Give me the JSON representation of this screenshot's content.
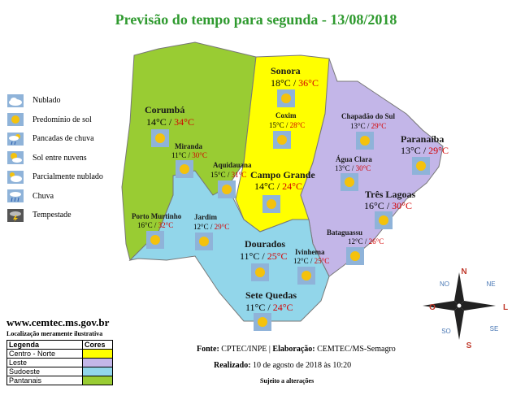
{
  "title": "Previsão do tempo para segunda - 13/08/2018",
  "icon_legend": [
    {
      "label": "Nublado",
      "icon": "cloudy-icon"
    },
    {
      "label": "Predomínio de sol",
      "icon": "sun-icon"
    },
    {
      "label": "Pancadas de chuva",
      "icon": "showers-icon"
    },
    {
      "label": "Sol entre nuvens",
      "icon": "sun-clouds-icon"
    },
    {
      "label": "Parcialmente nublado",
      "icon": "partly-cloudy-icon"
    },
    {
      "label": "Chuva",
      "icon": "rain-icon"
    },
    {
      "label": "Tempestade",
      "icon": "storm-icon"
    }
  ],
  "cities": {
    "corumba": {
      "name": "Corumbá",
      "min": "14°C",
      "sep": " / ",
      "max": "34°C"
    },
    "sonora": {
      "name": "Sonora",
      "min": "18°C",
      "sep": " / ",
      "max": "36°C"
    },
    "coxim": {
      "name": "Coxim",
      "min": "15°C",
      "sep": " / ",
      "max": "28°C"
    },
    "chapadao": {
      "name": "Chapadão do Sul",
      "min": "13°C",
      "sep": " / ",
      "max": "29°C"
    },
    "paranaiba": {
      "name": "Paranaíba",
      "min": "13°C",
      "sep": " / ",
      "max": "29°C"
    },
    "miranda": {
      "name": "Miranda",
      "min": "11°C",
      "sep": " / ",
      "max": "30°C"
    },
    "aquidauana": {
      "name": "Aquidauana",
      "min": "15°C",
      "sep": " / ",
      "max": "31°C"
    },
    "campogrande": {
      "name": "Campo Grande",
      "min": "14°C",
      "sep": " / ",
      "max": "24°C"
    },
    "aguaclara": {
      "name": "Água Clara",
      "min": "13°C",
      "sep": " / ",
      "max": "30°C"
    },
    "treslagoas": {
      "name": "Três Lagoas",
      "min": "16°C",
      "sep": " / ",
      "max": "30°C"
    },
    "portomurtinho": {
      "name": "Porto Murtinho",
      "min": "16°C",
      "sep": " / ",
      "max": "32°C"
    },
    "jardim": {
      "name": "Jardim",
      "min": "12°C",
      "sep": " / ",
      "max": "29°C"
    },
    "bataguassu": {
      "name": "Bataguassu",
      "min": "12°C",
      "sep": " / ",
      "max": "26°C"
    },
    "dourados": {
      "name": "Dourados",
      "min": "11°C",
      "sep": " / ",
      "max": "25°C"
    },
    "ivinhema": {
      "name": "Ivinhema",
      "min": "12°C",
      "sep": " / ",
      "max": "25°C"
    },
    "setequedas": {
      "name": "Sete Quedas",
      "min": "11°C",
      "sep": " / ",
      "max": "24°C"
    }
  },
  "compass": {
    "n": "N",
    "s": "S",
    "l": "L",
    "o": "O",
    "no": "NO",
    "ne": "NE",
    "so": "SO",
    "se": "SE"
  },
  "website": "www.cemtec.ms.gov.br",
  "illustrative_note": "Localização meramente ilustrativa",
  "region_legend": {
    "col_legenda": "Legenda",
    "col_cores": "Cores",
    "rows": [
      {
        "label": "Centro - Norte",
        "color": "#ffff00"
      },
      {
        "label": "Leste",
        "color": "#c3b6e8"
      },
      {
        "label": "Sudoeste",
        "color": "#92d6ea"
      },
      {
        "label": "Pantanais",
        "color": "#99cc33"
      }
    ]
  },
  "colors": {
    "centro_norte": "#ffff00",
    "leste": "#c3b6e8",
    "sudoeste": "#92d6ea",
    "pantanais": "#99cc33",
    "title": "#2f9a2f",
    "max_temp": "#d40000"
  },
  "footer": {
    "fonte_label": "Fonte:",
    "fonte_text": " CPTEC/INPE | ",
    "elab_label": "Elaboração:",
    "elab_text": " CEMTEC/MS-Semagro",
    "realizado_label": "Realizado:",
    "realizado_text": " 10 de agosto de 2018 às 10:20",
    "subject": "Sujeito a alterações"
  }
}
